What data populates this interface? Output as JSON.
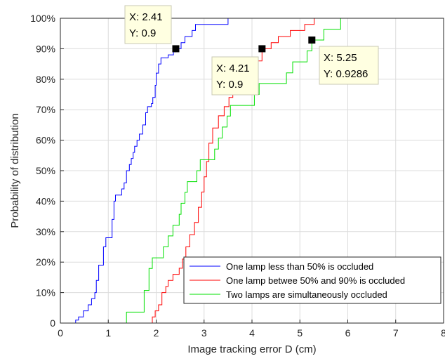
{
  "chart_data": {
    "type": "line",
    "title": "",
    "xlabel": "Image tracking error D (cm)",
    "ylabel": "Probability of distribution",
    "xlim": [
      0,
      8
    ],
    "ylim": [
      0,
      1
    ],
    "x_ticks": [
      0,
      1,
      2,
      3,
      4,
      5,
      6,
      7,
      8
    ],
    "x_tick_labels": [
      "0",
      "1",
      "2",
      "3",
      "4",
      "5",
      "6",
      "7",
      "8"
    ],
    "y_ticks": [
      0,
      0.1,
      0.2,
      0.3,
      0.4,
      0.5,
      0.6,
      0.7,
      0.8,
      0.9,
      1.0
    ],
    "y_tick_labels": [
      "0",
      "10%",
      "20%",
      "30%",
      "40%",
      "50%",
      "60%",
      "70%",
      "80%",
      "90%",
      "100%"
    ],
    "grid": true,
    "legend_position": "bottom-right",
    "series": [
      {
        "name": "One lamp less than 50% is occluded",
        "color": "#0000ff",
        "step": true,
        "points": [
          [
            0,
            0
          ],
          [
            0.32,
            0
          ],
          [
            0.32,
            0.01
          ],
          [
            0.38,
            0.01
          ],
          [
            0.38,
            0.02
          ],
          [
            0.48,
            0.02
          ],
          [
            0.48,
            0.04
          ],
          [
            0.58,
            0.04
          ],
          [
            0.58,
            0.06
          ],
          [
            0.65,
            0.06
          ],
          [
            0.65,
            0.08
          ],
          [
            0.72,
            0.08
          ],
          [
            0.72,
            0.1
          ],
          [
            0.75,
            0.1
          ],
          [
            0.75,
            0.14
          ],
          [
            0.8,
            0.14
          ],
          [
            0.8,
            0.19
          ],
          [
            0.9,
            0.19
          ],
          [
            0.9,
            0.25
          ],
          [
            0.95,
            0.25
          ],
          [
            0.95,
            0.28
          ],
          [
            1.08,
            0.28
          ],
          [
            1.08,
            0.34
          ],
          [
            1.12,
            0.34
          ],
          [
            1.12,
            0.4
          ],
          [
            1.15,
            0.4
          ],
          [
            1.15,
            0.42
          ],
          [
            1.28,
            0.42
          ],
          [
            1.28,
            0.44
          ],
          [
            1.33,
            0.44
          ],
          [
            1.33,
            0.46
          ],
          [
            1.38,
            0.46
          ],
          [
            1.38,
            0.5
          ],
          [
            1.44,
            0.5
          ],
          [
            1.44,
            0.52
          ],
          [
            1.48,
            0.52
          ],
          [
            1.48,
            0.54
          ],
          [
            1.52,
            0.54
          ],
          [
            1.52,
            0.56
          ],
          [
            1.55,
            0.56
          ],
          [
            1.55,
            0.58
          ],
          [
            1.6,
            0.58
          ],
          [
            1.6,
            0.6
          ],
          [
            1.65,
            0.6
          ],
          [
            1.65,
            0.62
          ],
          [
            1.72,
            0.62
          ],
          [
            1.72,
            0.65
          ],
          [
            1.78,
            0.65
          ],
          [
            1.78,
            0.69
          ],
          [
            1.82,
            0.69
          ],
          [
            1.82,
            0.71
          ],
          [
            1.9,
            0.71
          ],
          [
            1.9,
            0.72
          ],
          [
            1.93,
            0.72
          ],
          [
            1.93,
            0.74
          ],
          [
            1.98,
            0.74
          ],
          [
            1.98,
            0.78
          ],
          [
            2.0,
            0.78
          ],
          [
            2.0,
            0.82
          ],
          [
            2.05,
            0.82
          ],
          [
            2.05,
            0.85
          ],
          [
            2.1,
            0.85
          ],
          [
            2.1,
            0.87
          ],
          [
            2.25,
            0.87
          ],
          [
            2.25,
            0.88
          ],
          [
            2.36,
            0.88
          ],
          [
            2.36,
            0.89
          ],
          [
            2.41,
            0.89
          ],
          [
            2.41,
            0.9
          ],
          [
            2.52,
            0.9
          ],
          [
            2.52,
            0.92
          ],
          [
            2.6,
            0.92
          ],
          [
            2.6,
            0.94
          ],
          [
            2.75,
            0.94
          ],
          [
            2.75,
            0.96
          ],
          [
            2.82,
            0.96
          ],
          [
            2.82,
            0.98
          ],
          [
            3.5,
            0.98
          ],
          [
            3.5,
            1.0
          ],
          [
            8,
            1.0
          ]
        ]
      },
      {
        "name": "One lamp betwee 50% and 90% is occluded",
        "color": "#ff0000",
        "step": true,
        "points": [
          [
            0,
            0
          ],
          [
            1.92,
            0
          ],
          [
            1.92,
            0.02
          ],
          [
            1.98,
            0.02
          ],
          [
            1.98,
            0.04
          ],
          [
            2.05,
            0.04
          ],
          [
            2.05,
            0.06
          ],
          [
            2.12,
            0.06
          ],
          [
            2.12,
            0.1
          ],
          [
            2.2,
            0.1
          ],
          [
            2.2,
            0.12
          ],
          [
            2.25,
            0.12
          ],
          [
            2.25,
            0.14
          ],
          [
            2.35,
            0.14
          ],
          [
            2.35,
            0.16
          ],
          [
            2.48,
            0.16
          ],
          [
            2.48,
            0.18
          ],
          [
            2.55,
            0.18
          ],
          [
            2.55,
            0.21
          ],
          [
            2.62,
            0.21
          ],
          [
            2.62,
            0.25
          ],
          [
            2.7,
            0.25
          ],
          [
            2.7,
            0.29
          ],
          [
            2.8,
            0.29
          ],
          [
            2.8,
            0.33
          ],
          [
            2.88,
            0.33
          ],
          [
            2.88,
            0.38
          ],
          [
            2.95,
            0.38
          ],
          [
            2.95,
            0.43
          ],
          [
            3.0,
            0.43
          ],
          [
            3.0,
            0.48
          ],
          [
            3.05,
            0.48
          ],
          [
            3.05,
            0.53
          ],
          [
            3.1,
            0.53
          ],
          [
            3.1,
            0.59
          ],
          [
            3.18,
            0.59
          ],
          [
            3.18,
            0.64
          ],
          [
            3.3,
            0.64
          ],
          [
            3.3,
            0.68
          ],
          [
            3.42,
            0.68
          ],
          [
            3.42,
            0.71
          ],
          [
            3.52,
            0.71
          ],
          [
            3.52,
            0.74
          ],
          [
            3.6,
            0.74
          ],
          [
            3.6,
            0.76
          ],
          [
            3.75,
            0.76
          ],
          [
            3.75,
            0.78
          ],
          [
            3.85,
            0.78
          ],
          [
            3.85,
            0.8
          ],
          [
            4.0,
            0.8
          ],
          [
            4.0,
            0.83
          ],
          [
            4.1,
            0.83
          ],
          [
            4.1,
            0.86
          ],
          [
            4.21,
            0.86
          ],
          [
            4.21,
            0.9
          ],
          [
            4.4,
            0.9
          ],
          [
            4.4,
            0.92
          ],
          [
            4.55,
            0.92
          ],
          [
            4.55,
            0.94
          ],
          [
            4.8,
            0.94
          ],
          [
            4.8,
            0.96
          ],
          [
            5.1,
            0.96
          ],
          [
            5.1,
            0.98
          ],
          [
            5.3,
            0.98
          ],
          [
            5.3,
            1.0
          ],
          [
            8,
            1.0
          ]
        ]
      },
      {
        "name": "Two lamps are simultaneously occluded",
        "color": "#00e000",
        "step": true,
        "points": [
          [
            0,
            0
          ],
          [
            1.38,
            0
          ],
          [
            1.38,
            0.036
          ],
          [
            1.75,
            0.036
          ],
          [
            1.75,
            0.107
          ],
          [
            1.85,
            0.107
          ],
          [
            1.85,
            0.179
          ],
          [
            1.92,
            0.179
          ],
          [
            1.92,
            0.214
          ],
          [
            2.15,
            0.214
          ],
          [
            2.15,
            0.25
          ],
          [
            2.25,
            0.25
          ],
          [
            2.25,
            0.286
          ],
          [
            2.35,
            0.286
          ],
          [
            2.35,
            0.321
          ],
          [
            2.48,
            0.321
          ],
          [
            2.48,
            0.357
          ],
          [
            2.52,
            0.357
          ],
          [
            2.52,
            0.393
          ],
          [
            2.6,
            0.393
          ],
          [
            2.6,
            0.429
          ],
          [
            2.65,
            0.429
          ],
          [
            2.65,
            0.464
          ],
          [
            2.85,
            0.464
          ],
          [
            2.85,
            0.5
          ],
          [
            2.92,
            0.5
          ],
          [
            2.92,
            0.536
          ],
          [
            3.22,
            0.536
          ],
          [
            3.22,
            0.571
          ],
          [
            3.3,
            0.571
          ],
          [
            3.3,
            0.607
          ],
          [
            3.38,
            0.607
          ],
          [
            3.38,
            0.643
          ],
          [
            3.48,
            0.643
          ],
          [
            3.48,
            0.679
          ],
          [
            3.55,
            0.679
          ],
          [
            3.55,
            0.714
          ],
          [
            4.05,
            0.714
          ],
          [
            4.05,
            0.75
          ],
          [
            4.15,
            0.75
          ],
          [
            4.15,
            0.786
          ],
          [
            4.72,
            0.786
          ],
          [
            4.72,
            0.821
          ],
          [
            4.85,
            0.821
          ],
          [
            4.85,
            0.857
          ],
          [
            5.15,
            0.857
          ],
          [
            5.15,
            0.893
          ],
          [
            5.25,
            0.893
          ],
          [
            5.25,
            0.9286
          ],
          [
            5.5,
            0.9286
          ],
          [
            5.5,
            0.964
          ],
          [
            5.85,
            0.964
          ],
          [
            5.85,
            1.0
          ],
          [
            8,
            1.0
          ]
        ]
      }
    ],
    "datatips": [
      {
        "x": 2.41,
        "y": 0.9,
        "label_x": "X: 2.41",
        "label_y": "Y: 0.9"
      },
      {
        "x": 4.21,
        "y": 0.9,
        "label_x": "X: 4.21",
        "label_y": "Y: 0.9"
      },
      {
        "x": 5.25,
        "y": 0.9286,
        "label_x": "X: 5.25",
        "label_y": "Y: 0.9286"
      }
    ]
  }
}
